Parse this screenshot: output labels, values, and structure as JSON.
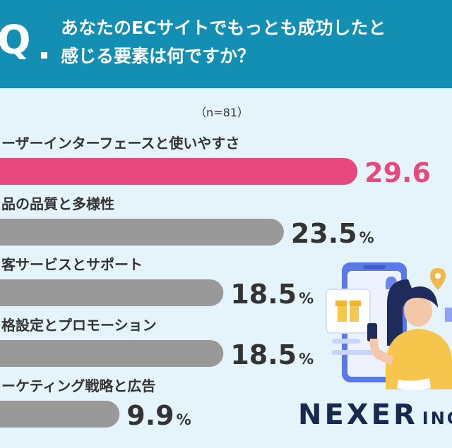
{
  "header": {
    "q_letter": "Q",
    "question": "あなたのECサイトでもっとも成功したと\n感じる要素は何ですか？"
  },
  "sample_note": "（n=81）",
  "chart_data": {
    "type": "bar",
    "orientation": "horizontal",
    "title": "あなたのECサイトでもっとも成功したと感じる要素は何ですか？",
    "categories": [
      "ユーザーインターフェースと使いやすさ",
      "商品の品質と多様性",
      "顧客サービスとサポート",
      "価格設定とプロモーション",
      "マーケティング戦略と広告"
    ],
    "visible_labels": [
      "ーザーインターフェースと使いやすさ",
      "品の品質と多様性",
      "客サービスとサポート",
      "格設定とプロモーション",
      "ーケティング戦略と広告"
    ],
    "values": [
      29.6,
      23.5,
      18.5,
      18.5,
      9.9
    ],
    "value_labels": [
      "29.6",
      "23.5",
      "18.5",
      "18.5",
      "9.9"
    ],
    "unit": "%",
    "xlim": [
      0,
      40
    ],
    "grid": false,
    "legend": "none",
    "colors": {
      "highlight": "#e8487d",
      "default": "#999999"
    }
  },
  "brand": {
    "name": "NEXER",
    "suffix": "INC"
  },
  "colors": {
    "header": "#128fb3",
    "panel": "#e4f4fa",
    "text": "#333333",
    "brand": "#17294d"
  },
  "icons": [
    "shop-phone-illustration",
    "woman-with-phone-illustration",
    "location-pin-icon",
    "bell-icon",
    "gift-box-icon",
    "shopping-cart-icon"
  ]
}
